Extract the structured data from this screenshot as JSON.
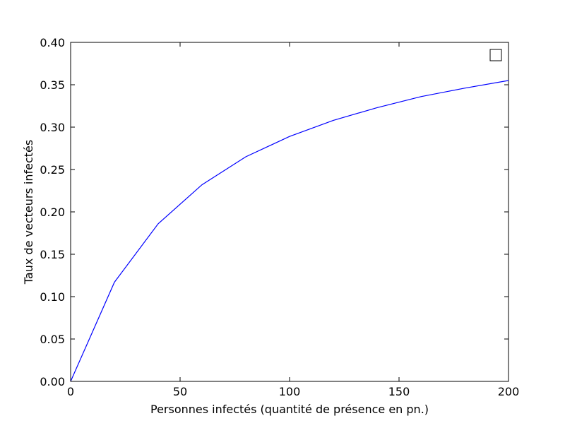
{
  "chart_data": {
    "type": "line",
    "title": "",
    "xlabel": "Personnes infectés (quantité de présence en pn.)",
    "ylabel": "Taux de vecteurs infectés",
    "xlim": [
      0,
      200
    ],
    "ylim": [
      0,
      0.4
    ],
    "xticks": [
      "0",
      "50",
      "100",
      "150",
      "200"
    ],
    "yticks": [
      "0.00",
      "0.05",
      "0.10",
      "0.15",
      "0.20",
      "0.25",
      "0.30",
      "0.35",
      "0.40"
    ],
    "grid": false,
    "legend": "top-right",
    "series": [
      {
        "color": "#0000ff",
        "x": [
          0,
          20,
          40,
          60,
          80,
          100,
          120,
          140,
          160,
          180,
          200
        ],
        "y": [
          0.0,
          0.117,
          0.186,
          0.232,
          0.265,
          0.289,
          0.308,
          0.323,
          0.336,
          0.346,
          0.355
        ]
      }
    ]
  }
}
